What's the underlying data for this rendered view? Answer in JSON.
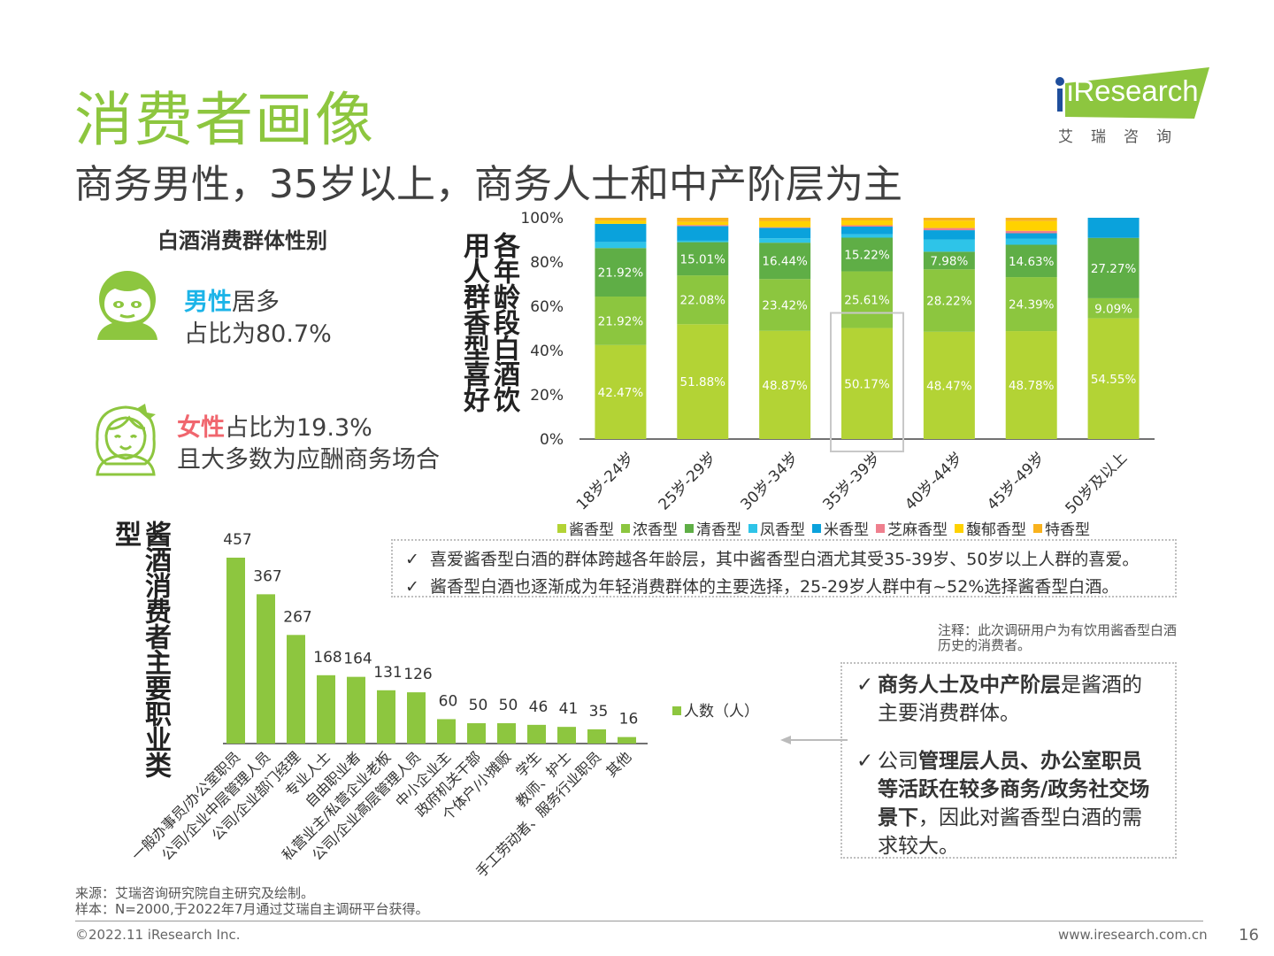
{
  "header": {
    "title": "消费者画像",
    "subtitle": "商务男性，35岁以上，商务人士和中产阶层为主",
    "logo_text": "iResearch",
    "logo_cn": "艾瑞咨询"
  },
  "gender": {
    "title": "白酒消费群体性别",
    "male_highlight": "男性",
    "male_rest": "居多",
    "male_ratio": "占比为80.7%",
    "female_highlight": "女性",
    "female_rest": "占比为19.3%",
    "female_note": "且大多数为应酬商务场合",
    "icons": [
      "male-avatar-icon",
      "female-avatar-icon"
    ]
  },
  "age_chart_title": "各年龄段白酒饮用人群香型喜好",
  "occupation_chart_title": "酱酒消费者主要职业类型",
  "colors": {
    "brand_green": "#8dc63f",
    "male_blue": "#1cb4e8",
    "female_red": "#f0666e"
  },
  "chart_data": [
    {
      "type": "bar",
      "stacked": true,
      "title": "各年龄段白酒饮用人群香型喜好",
      "categories": [
        "18岁-24岁",
        "25岁-29岁",
        "30岁-34岁",
        "35岁-39岁",
        "40岁-44岁",
        "45岁-49岁",
        "50岁及以上"
      ],
      "ylim": [
        0,
        100
      ],
      "yticks": [
        "0%",
        "20%",
        "40%",
        "60%",
        "80%",
        "100%"
      ],
      "legend_position": "bottom",
      "series": [
        {
          "name": "酱香型",
          "color": "#b3d335",
          "values": [
            42.47,
            51.88,
            48.87,
            50.17,
            48.47,
            48.78,
            54.55
          ],
          "labels": [
            "42.47%",
            "51.88%",
            "48.87%",
            "50.17%",
            "48.47%",
            "48.78%",
            "54.55%"
          ]
        },
        {
          "name": "浓香型",
          "color": "#8cc63f",
          "values": [
            21.92,
            22.08,
            23.42,
            25.61,
            28.22,
            24.39,
            9.09
          ],
          "labels": [
            "21.92%",
            "22.08%",
            "23.42%",
            "25.61%",
            "28.22%",
            "24.39%",
            "9.09%"
          ]
        },
        {
          "name": "清香型",
          "color": "#5fae46",
          "values": [
            21.92,
            15.01,
            16.44,
            15.22,
            7.98,
            14.63,
            27.27
          ],
          "labels": [
            "21.92%",
            "15.01%",
            "16.44%",
            "15.22%",
            "7.98%",
            "14.63%",
            "27.27%"
          ]
        },
        {
          "name": "凤香型",
          "color": "#2ec4e8",
          "values": [
            2.74,
            0.66,
            2.0,
            1.5,
            5.5,
            2.8,
            0
          ],
          "labels": [
            "",
            "",
            "",
            "",
            "",
            "",
            ""
          ]
        },
        {
          "name": "米香型",
          "color": "#0aa2dc",
          "values": [
            8.2,
            6.6,
            4.7,
            3.5,
            4.2,
            2.4,
            9.09
          ],
          "labels": [
            "",
            "",
            "",
            "",
            "",
            "",
            ""
          ]
        },
        {
          "name": "芝麻香型",
          "color": "#ef7f8e",
          "values": [
            0,
            0.5,
            0.3,
            0.6,
            1.0,
            1.1,
            0
          ],
          "labels": [
            "",
            "",
            "",
            "",
            "",
            "",
            ""
          ]
        },
        {
          "name": "馥郁香型",
          "color": "#ffd200",
          "values": [
            1.4,
            1.4,
            2.7,
            2.2,
            3.3,
            4.4,
            0
          ],
          "labels": [
            "",
            "",
            "",
            "",
            "",
            "",
            ""
          ]
        },
        {
          "name": "特香型",
          "color": "#f9b21d",
          "values": [
            1.35,
            1.87,
            1.57,
            1.2,
            1.33,
            1.5,
            0
          ],
          "labels": [
            "",
            "",
            "",
            "",
            "",
            "",
            ""
          ]
        }
      ],
      "highlight_category": "35岁-39岁"
    },
    {
      "type": "bar",
      "title": "酱酒消费者主要职业类型",
      "categories": [
        "一般办事员/办公室职员",
        "公司/企业中层管理人员",
        "公司/企业部门经理",
        "专业人士",
        "自由职业者",
        "私营业主/私营企业老板",
        "公司/企业高层管理人员",
        "中小企业主",
        "政府机关干部",
        "个体户/小摊贩",
        "学生",
        "教师、护士",
        "手工劳动者、服务行业职员",
        "其他"
      ],
      "series": [
        {
          "name": "人数（人）",
          "color": "#8dc63f",
          "values": [
            457,
            367,
            267,
            168,
            164,
            131,
            126,
            60,
            50,
            50,
            46,
            41,
            35,
            16
          ]
        }
      ],
      "ylim": [
        0,
        457
      ],
      "legend_position": "right"
    }
  ],
  "insights": {
    "line1": "喜爱酱香型白酒的群体跨越各年龄层，其中酱香型白酒尤其受35-39岁、50岁以上人群的喜爱。",
    "line2": "酱香型白酒也逐渐成为年轻消费群体的主要选择，25-29岁人群中有~52%选择酱香型白酒。",
    "check": "✓"
  },
  "survey_note": "注释：此次调研用户为有饮用酱香型白酒历史的消费者。",
  "conclusions": {
    "c1_bold": "商务人士及中产阶层",
    "c1_rest": "是酱酒的主要消费群体。",
    "c2_pre": "公司",
    "c2_bold": "管理层人员、办公室职员等活跃在较多商务/政务社交场景下",
    "c2_rest": "，因此对酱香型白酒的需求较大。"
  },
  "footer": {
    "source": "来源：艾瑞咨询研究院自主研究及绘制。",
    "sample": "样本：N=2000,于2022年7月通过艾瑞自主调研平台获得。",
    "copyright": "©2022.11 iResearch Inc.",
    "website": "www.iresearch.com.cn",
    "page": "16"
  }
}
